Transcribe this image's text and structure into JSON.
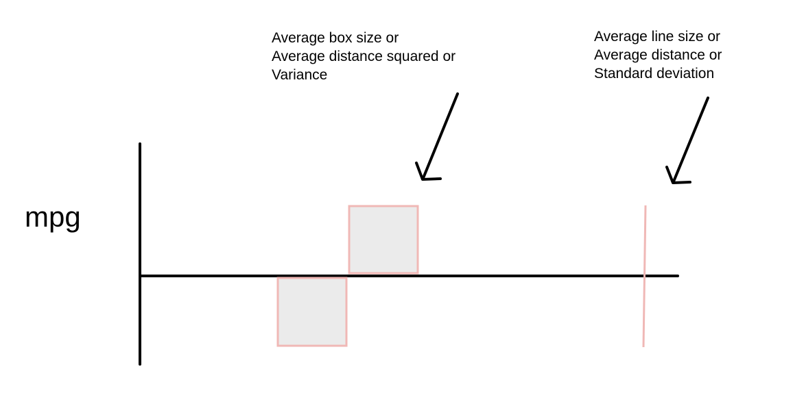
{
  "y_axis_label": "mpg",
  "annotations": {
    "variance": {
      "lines": [
        "Average box size or",
        "Average distance squared or",
        "Variance"
      ]
    },
    "std_dev": {
      "lines": [
        "Average line size or",
        "Average distance or",
        "Standard deviation"
      ]
    }
  },
  "colors": {
    "axis": "#000000",
    "box_stroke": "#f0b8b6",
    "box_fill": "#ebebeb",
    "line_stroke": "#f0b8b6",
    "arrow": "#000000",
    "background": "#ffffff"
  }
}
